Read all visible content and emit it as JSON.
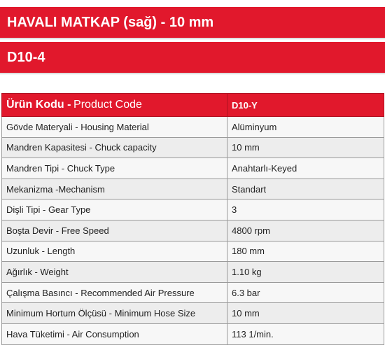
{
  "header": {
    "title": "HAVALI MATKAP (sağ) - 10 mm",
    "model": "D10-4"
  },
  "table": {
    "header": {
      "label_bold": "Ürün Kodu -",
      "label_light": "Product Code",
      "code": "D10-Y"
    },
    "rows": [
      {
        "label": "Gövde Materyali - Housing Material",
        "value": "Alüminyum"
      },
      {
        "label": "Mandren Kapasitesi - Chuck capacity",
        "value": "10 mm"
      },
      {
        "label": "Mandren Tipi - Chuck Type",
        "value": "Anahtarlı-Keyed"
      },
      {
        "label": "Mekanizma -Mechanism",
        "value": "Standart"
      },
      {
        "label": "Dişli Tipi - Gear Type",
        "value": "3"
      },
      {
        "label": "Boşta Devir - Free Speed",
        "value": "4800 rpm"
      },
      {
        "label": "Uzunluk - Length",
        "value": "180 mm"
      },
      {
        "label": "Ağırlık - Weight",
        "value": "1.10 kg"
      },
      {
        "label": "Çalışma Basıncı - Recommended Air Pressure",
        "value": "6.3 bar"
      },
      {
        "label": "Minimum Hortum Ölçüsü - Minimum Hose Size",
        "value": "10 mm"
      },
      {
        "label": "Hava Tüketimi - Air Consumption",
        "value": "113 1/min."
      }
    ]
  },
  "colors": {
    "accent": "#e1182c"
  }
}
